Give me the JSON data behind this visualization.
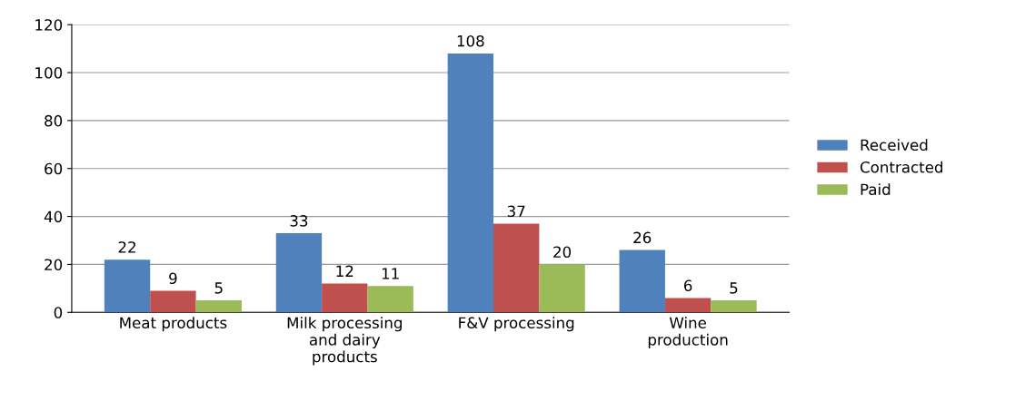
{
  "chart_data": {
    "type": "bar",
    "categories": [
      "Meat products",
      "Milk processing\nand dairy\nproducts",
      "F&V processing",
      "Wine\nproduction"
    ],
    "series": [
      {
        "name": "Received",
        "color": "#4f81bd",
        "values": [
          22,
          33,
          108,
          26
        ]
      },
      {
        "name": "Contracted",
        "color": "#c0504d",
        "values": [
          9,
          12,
          37,
          6
        ]
      },
      {
        "name": "Paid",
        "color": "#9bbb59",
        "values": [
          5,
          11,
          20,
          5
        ]
      }
    ],
    "ylim": [
      0,
      120
    ],
    "yticks": [
      0,
      20,
      40,
      60,
      80,
      100,
      120
    ],
    "grid": "y",
    "legend": "right",
    "data_labels": true
  }
}
